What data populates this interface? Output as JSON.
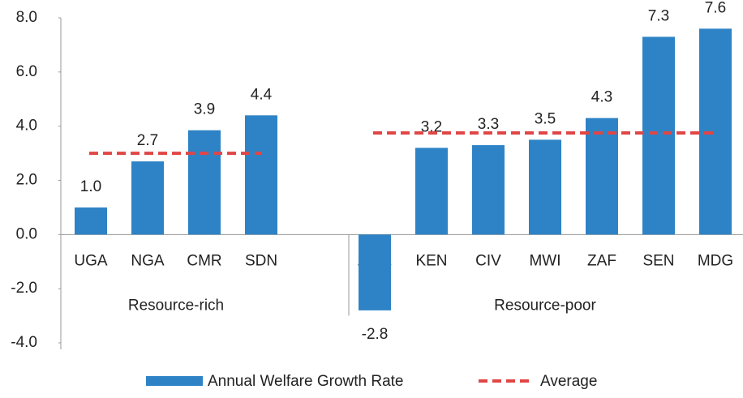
{
  "chart_data": {
    "type": "bar",
    "categories": [
      "UGA",
      "NGA",
      "CMR",
      "SDN",
      null,
      "ZWE",
      "KEN",
      "CIV",
      "MWI",
      "ZAF",
      "SEN",
      "MDG"
    ],
    "groups": [
      "Resource-rich",
      "Resource-poor"
    ],
    "series": [
      {
        "name": "Annual Welfare Growth Rate",
        "color": "#2e83c6",
        "type": "bar",
        "values": [
          1.0,
          2.7,
          3.85,
          4.4,
          null,
          -2.8,
          3.2,
          3.3,
          3.5,
          4.3,
          7.3,
          7.6
        ],
        "value_labels": [
          "1.0",
          "2.7",
          "3.9",
          "4.4",
          null,
          "-2.8",
          "3.2",
          "3.3",
          "3.5",
          "4.3",
          "7.3",
          "7.6"
        ]
      },
      {
        "name": "Average",
        "color": "#e04646",
        "type": "line",
        "dashed": true,
        "values": [
          3.0,
          3.0,
          3.0,
          3.0,
          null,
          3.75,
          3.75,
          3.75,
          3.75,
          3.75,
          3.75,
          3.75
        ]
      }
    ],
    "ylim": [
      -4,
      8
    ],
    "yticks": [
      {
        "value": -4,
        "label": "-4.0"
      },
      {
        "value": -2,
        "label": "-2.0"
      },
      {
        "value": 0,
        "label": "0.0"
      },
      {
        "value": 2,
        "label": "2.0"
      },
      {
        "value": 4,
        "label": "4.0"
      },
      {
        "value": 6,
        "label": "6.0"
      },
      {
        "value": 8,
        "label": "8.0"
      }
    ],
    "grid": false,
    "legend": "bottom"
  }
}
